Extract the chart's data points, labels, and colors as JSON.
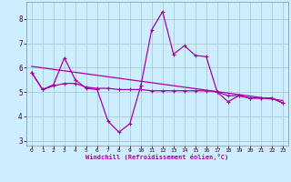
{
  "background_color": "#cceeff",
  "grid_color": "#aacccc",
  "line_color": "#aa00aa",
  "xlabel": "Windchill (Refroidissement éolien,°C)",
  "xlim": [
    -0.5,
    23.5
  ],
  "ylim": [
    2.8,
    8.7
  ],
  "yticks": [
    3,
    4,
    5,
    6,
    7,
    8
  ],
  "xticks": [
    0,
    1,
    2,
    3,
    4,
    5,
    6,
    7,
    8,
    9,
    10,
    11,
    12,
    13,
    14,
    15,
    16,
    17,
    18,
    19,
    20,
    21,
    22,
    23
  ],
  "series1_x": [
    0,
    1,
    2,
    3,
    4,
    5,
    6,
    7,
    8,
    9,
    10,
    11,
    12,
    13,
    14,
    15,
    16,
    17,
    18,
    19,
    20,
    21,
    22,
    23
  ],
  "series1_y": [
    5.8,
    5.1,
    5.3,
    6.4,
    5.5,
    5.15,
    5.1,
    3.8,
    3.35,
    3.7,
    5.25,
    7.55,
    8.3,
    6.55,
    6.9,
    6.5,
    6.45,
    5.0,
    4.6,
    4.85,
    4.75,
    4.75,
    4.75,
    4.55
  ],
  "series2_x": [
    0,
    1,
    2,
    3,
    4,
    5,
    6,
    7,
    8,
    9,
    10,
    11,
    12,
    13,
    14,
    15,
    16,
    17,
    18,
    19,
    20,
    21,
    22,
    23
  ],
  "series2_y": [
    5.8,
    5.1,
    5.25,
    5.35,
    5.35,
    5.2,
    5.15,
    5.15,
    5.1,
    5.1,
    5.1,
    5.05,
    5.05,
    5.05,
    5.05,
    5.05,
    5.05,
    5.0,
    4.85,
    4.85,
    4.75,
    4.75,
    4.75,
    4.55
  ],
  "series3_x": [
    0,
    23
  ],
  "series3_y": [
    6.05,
    4.65
  ],
  "title": ""
}
